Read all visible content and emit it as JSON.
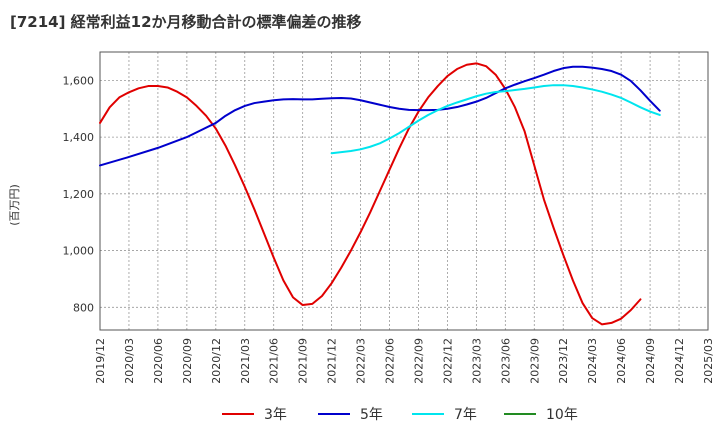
{
  "chart_data": {
    "type": "line",
    "title": "[7214]  経常利益12か月移動合計の標準偏差の推移",
    "ylabel": "(百万円)",
    "xlabel": "",
    "ylim": [
      720,
      1700
    ],
    "yticks": [
      800,
      1000,
      1200,
      1400,
      1600
    ],
    "ytick_labels": [
      "800",
      "1,000",
      "1,200",
      "1,400",
      "1,600"
    ],
    "xlim": [
      "2019/12",
      "2025/03"
    ],
    "x_tick_labels": [
      "2019/12",
      "2020/03",
      "2020/06",
      "2020/09",
      "2020/12",
      "2021/03",
      "2021/06",
      "2021/09",
      "2021/12",
      "2022/03",
      "2022/06",
      "2022/09",
      "2022/12",
      "2023/03",
      "2023/06",
      "2023/09",
      "2023/12",
      "2024/03",
      "2024/06",
      "2024/09",
      "2024/12",
      "2025/03"
    ],
    "grid": true,
    "legend_position": "bottom",
    "series": [
      {
        "name": "3年",
        "color": "#e00000",
        "points": [
          [
            "2019/12",
            1450
          ],
          [
            "2020/01",
            1505
          ],
          [
            "2020/02",
            1540
          ],
          [
            "2020/03",
            1558
          ],
          [
            "2020/04",
            1572
          ],
          [
            "2020/05",
            1580
          ],
          [
            "2020/06",
            1580
          ],
          [
            "2020/07",
            1575
          ],
          [
            "2020/08",
            1560
          ],
          [
            "2020/09",
            1540
          ],
          [
            "2020/10",
            1510
          ],
          [
            "2020/11",
            1475
          ],
          [
            "2020/12",
            1430
          ],
          [
            "2021/01",
            1370
          ],
          [
            "2021/02",
            1300
          ],
          [
            "2021/03",
            1225
          ],
          [
            "2021/04",
            1145
          ],
          [
            "2021/05",
            1060
          ],
          [
            "2021/06",
            975
          ],
          [
            "2021/07",
            895
          ],
          [
            "2021/08",
            835
          ],
          [
            "2021/09",
            808
          ],
          [
            "2021/10",
            812
          ],
          [
            "2021/11",
            840
          ],
          [
            "2021/12",
            885
          ],
          [
            "2022/01",
            940
          ],
          [
            "2022/02",
            1000
          ],
          [
            "2022/03",
            1065
          ],
          [
            "2022/04",
            1135
          ],
          [
            "2022/05",
            1210
          ],
          [
            "2022/06",
            1285
          ],
          [
            "2022/07",
            1360
          ],
          [
            "2022/08",
            1430
          ],
          [
            "2022/09",
            1490
          ],
          [
            "2022/10",
            1540
          ],
          [
            "2022/11",
            1580
          ],
          [
            "2022/12",
            1615
          ],
          [
            "2023/01",
            1640
          ],
          [
            "2023/02",
            1655
          ],
          [
            "2023/03",
            1660
          ],
          [
            "2023/04",
            1650
          ],
          [
            "2023/05",
            1620
          ],
          [
            "2023/06",
            1570
          ],
          [
            "2023/07",
            1505
          ],
          [
            "2023/08",
            1420
          ],
          [
            "2023/09",
            1300
          ],
          [
            "2023/10",
            1180
          ],
          [
            "2023/11",
            1080
          ],
          [
            "2023/12",
            985
          ],
          [
            "2024/01",
            895
          ],
          [
            "2024/02",
            815
          ],
          [
            "2024/03",
            762
          ],
          [
            "2024/04",
            740
          ],
          [
            "2024/05",
            745
          ],
          [
            "2024/06",
            760
          ],
          [
            "2024/07",
            790
          ],
          [
            "2024/08",
            828
          ]
        ]
      },
      {
        "name": "5年",
        "color": "#0000cc",
        "points": [
          [
            "2019/12",
            1300
          ],
          [
            "2020/03",
            1330
          ],
          [
            "2020/06",
            1362
          ],
          [
            "2020/09",
            1400
          ],
          [
            "2020/12",
            1450
          ],
          [
            "2021/01",
            1475
          ],
          [
            "2021/02",
            1495
          ],
          [
            "2021/03",
            1510
          ],
          [
            "2021/04",
            1520
          ],
          [
            "2021/05",
            1525
          ],
          [
            "2021/06",
            1530
          ],
          [
            "2021/07",
            1533
          ],
          [
            "2021/08",
            1534
          ],
          [
            "2021/09",
            1533
          ],
          [
            "2021/10",
            1533
          ],
          [
            "2021/11",
            1535
          ],
          [
            "2021/12",
            1537
          ],
          [
            "2022/01",
            1538
          ],
          [
            "2022/02",
            1536
          ],
          [
            "2022/03",
            1530
          ],
          [
            "2022/04",
            1522
          ],
          [
            "2022/05",
            1514
          ],
          [
            "2022/06",
            1506
          ],
          [
            "2022/07",
            1500
          ],
          [
            "2022/08",
            1496
          ],
          [
            "2022/09",
            1495
          ],
          [
            "2022/10",
            1495
          ],
          [
            "2022/11",
            1496
          ],
          [
            "2022/12",
            1500
          ],
          [
            "2023/01",
            1506
          ],
          [
            "2023/02",
            1515
          ],
          [
            "2023/03",
            1525
          ],
          [
            "2023/04",
            1538
          ],
          [
            "2023/05",
            1555
          ],
          [
            "2023/06",
            1572
          ],
          [
            "2023/07",
            1585
          ],
          [
            "2023/08",
            1597
          ],
          [
            "2023/09",
            1608
          ],
          [
            "2023/10",
            1620
          ],
          [
            "2023/11",
            1633
          ],
          [
            "2023/12",
            1643
          ],
          [
            "2024/01",
            1648
          ],
          [
            "2024/02",
            1648
          ],
          [
            "2024/03",
            1645
          ],
          [
            "2024/04",
            1640
          ],
          [
            "2024/05",
            1633
          ],
          [
            "2024/06",
            1620
          ],
          [
            "2024/07",
            1598
          ],
          [
            "2024/08",
            1565
          ],
          [
            "2024/09",
            1528
          ],
          [
            "2024/10",
            1493
          ]
        ]
      },
      {
        "name": "7年",
        "color": "#00e5ee",
        "points": [
          [
            "2021/12",
            1343
          ],
          [
            "2022/01",
            1347
          ],
          [
            "2022/02",
            1351
          ],
          [
            "2022/03",
            1357
          ],
          [
            "2022/04",
            1366
          ],
          [
            "2022/05",
            1378
          ],
          [
            "2022/06",
            1395
          ],
          [
            "2022/07",
            1414
          ],
          [
            "2022/08",
            1436
          ],
          [
            "2022/09",
            1458
          ],
          [
            "2022/10",
            1478
          ],
          [
            "2022/11",
            1495
          ],
          [
            "2022/12",
            1510
          ],
          [
            "2023/01",
            1522
          ],
          [
            "2023/02",
            1533
          ],
          [
            "2023/03",
            1544
          ],
          [
            "2023/04",
            1553
          ],
          [
            "2023/05",
            1559
          ],
          [
            "2023/06",
            1562
          ],
          [
            "2023/07",
            1566
          ],
          [
            "2023/08",
            1570
          ],
          [
            "2023/09",
            1575
          ],
          [
            "2023/10",
            1580
          ],
          [
            "2023/11",
            1583
          ],
          [
            "2023/12",
            1583
          ],
          [
            "2024/01",
            1580
          ],
          [
            "2024/02",
            1575
          ],
          [
            "2024/03",
            1568
          ],
          [
            "2024/04",
            1560
          ],
          [
            "2024/05",
            1550
          ],
          [
            "2024/06",
            1538
          ],
          [
            "2024/07",
            1522
          ],
          [
            "2024/08",
            1505
          ],
          [
            "2024/09",
            1490
          ],
          [
            "2024/10",
            1478
          ]
        ]
      },
      {
        "name": "10年",
        "color": "#228b22",
        "points": []
      }
    ]
  }
}
